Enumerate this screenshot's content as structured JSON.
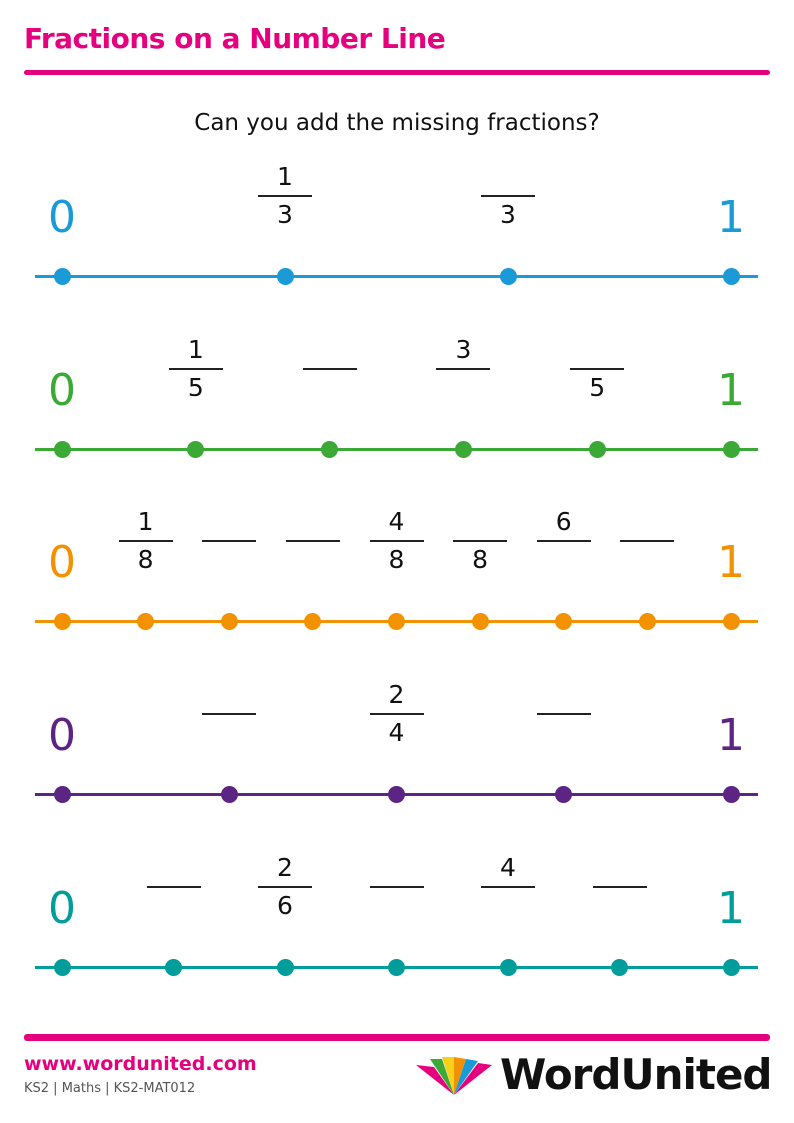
{
  "header": {
    "title": "Fractions on a Number Line",
    "accent": "#e5007e"
  },
  "instruction": "Can you add the missing fractions?",
  "number_lines": [
    {
      "color": "#1a9ad6",
      "start": "0",
      "end": "1",
      "intervals": 3,
      "labels": [
        {
          "num": "1",
          "den": "3"
        },
        {
          "num": "",
          "den": "3"
        }
      ]
    },
    {
      "color": "#3aa935",
      "start": "0",
      "end": "1",
      "intervals": 5,
      "labels": [
        {
          "num": "1",
          "den": "5"
        },
        {
          "num": "",
          "den": ""
        },
        {
          "num": "3",
          "den": ""
        },
        {
          "num": "",
          "den": "5"
        }
      ]
    },
    {
      "color": "#f39200",
      "start": "0",
      "end": "1",
      "intervals": 8,
      "labels": [
        {
          "num": "1",
          "den": "8"
        },
        {
          "num": "",
          "den": ""
        },
        {
          "num": "",
          "den": ""
        },
        {
          "num": "4",
          "den": "8"
        },
        {
          "num": "",
          "den": "8"
        },
        {
          "num": "6",
          "den": ""
        },
        {
          "num": "",
          "den": ""
        }
      ]
    },
    {
      "color": "#5c2483",
      "start": "0",
      "end": "1",
      "intervals": 4,
      "labels": [
        {
          "num": "",
          "den": ""
        },
        {
          "num": "2",
          "den": "4"
        },
        {
          "num": "",
          "den": ""
        }
      ]
    },
    {
      "color": "#009d9a",
      "start": "0",
      "end": "1",
      "intervals": 6,
      "labels": [
        {
          "num": "",
          "den": ""
        },
        {
          "num": "2",
          "den": "6"
        },
        {
          "num": "",
          "den": ""
        },
        {
          "num": "4",
          "den": ""
        },
        {
          "num": "",
          "den": ""
        }
      ]
    }
  ],
  "footer": {
    "url": "www.wordunited.com",
    "meta": "KS2 | Maths | KS2-MAT012",
    "brand": "WordUnited"
  }
}
